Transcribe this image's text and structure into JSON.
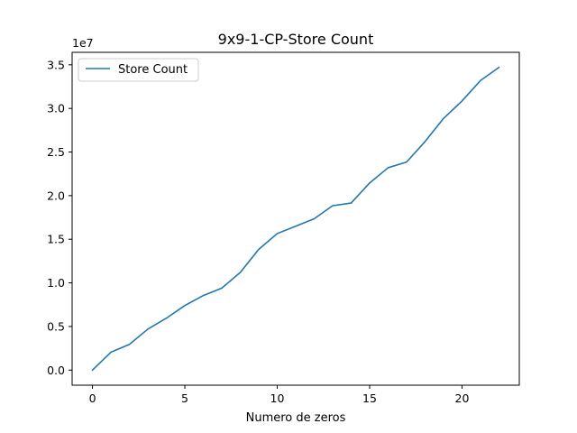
{
  "chart_data": {
    "type": "line",
    "title": "9x9-1-CP-Store Count",
    "xlabel": "Numero de zeros",
    "ylabel": "",
    "y_offset_label": "1e7",
    "xlim": [
      -1.1,
      23.1
    ],
    "ylim": [
      -1730000,
      36430000
    ],
    "x_ticks": [
      0,
      5,
      10,
      15,
      20
    ],
    "x_tick_labels": [
      "0",
      "5",
      "10",
      "15",
      "20"
    ],
    "y_ticks": [
      0,
      5000000,
      10000000,
      15000000,
      20000000,
      25000000,
      30000000,
      35000000
    ],
    "y_tick_labels": [
      "0.0",
      "0.5",
      "1.0",
      "1.5",
      "2.0",
      "2.5",
      "3.0",
      "3.5"
    ],
    "grid": false,
    "legend_position": "top-left",
    "series": [
      {
        "name": "Store Count",
        "color": "#1f77b4",
        "x": [
          0,
          1,
          2,
          3,
          4,
          5,
          6,
          7,
          8,
          9,
          10,
          11,
          12,
          13,
          14,
          15,
          16,
          17,
          18,
          19,
          20,
          21,
          22
        ],
        "y": [
          0,
          2050000,
          2950000,
          4700000,
          5950000,
          7400000,
          8550000,
          9400000,
          11200000,
          13850000,
          15650000,
          16500000,
          17350000,
          18850000,
          19150000,
          21450000,
          23200000,
          23850000,
          26200000,
          28850000,
          30850000,
          33200000,
          34700000
        ]
      }
    ]
  }
}
